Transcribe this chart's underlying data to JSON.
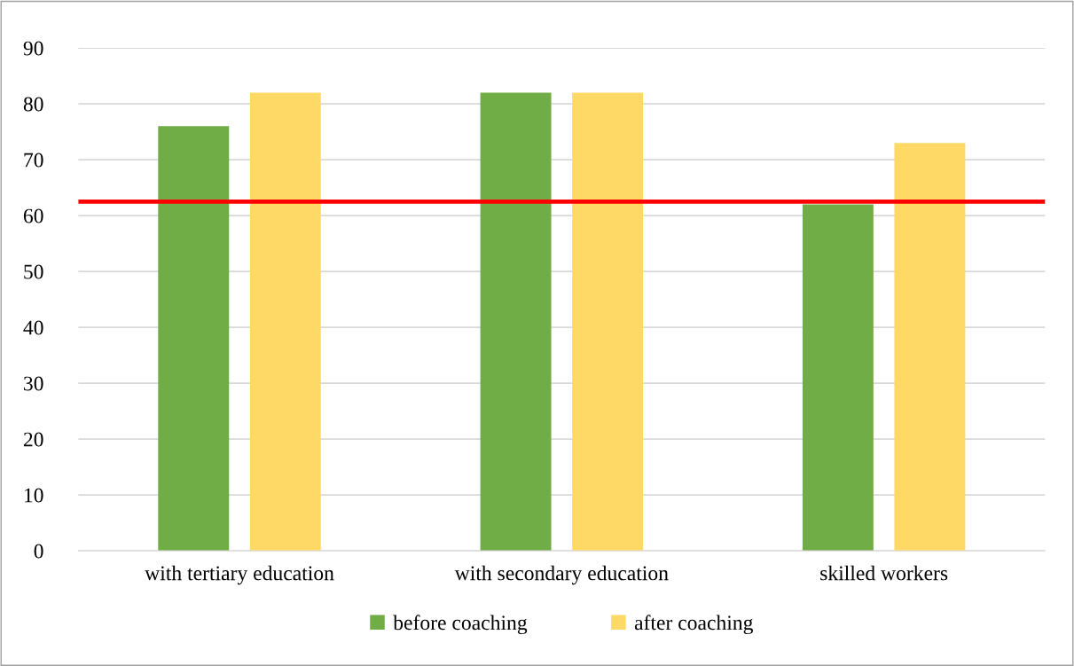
{
  "chart_data": {
    "type": "bar",
    "categories": [
      "with tertiary education",
      "with secondary education",
      "skilled workers"
    ],
    "series": [
      {
        "name": "before coaching",
        "color": "#70ad47",
        "values": [
          76,
          82,
          62
        ]
      },
      {
        "name": "after coaching",
        "color": "#ffd966",
        "values": [
          82,
          82,
          73
        ]
      }
    ],
    "ylim": [
      0,
      90
    ],
    "yticks": [
      0,
      10,
      20,
      30,
      40,
      50,
      60,
      70,
      80,
      90
    ],
    "grid": "y",
    "legend": "bottom",
    "ref_lines": [
      {
        "axis": "y",
        "value": 62.5,
        "color": "#ff0000",
        "line_style": "solid"
      }
    ]
  }
}
